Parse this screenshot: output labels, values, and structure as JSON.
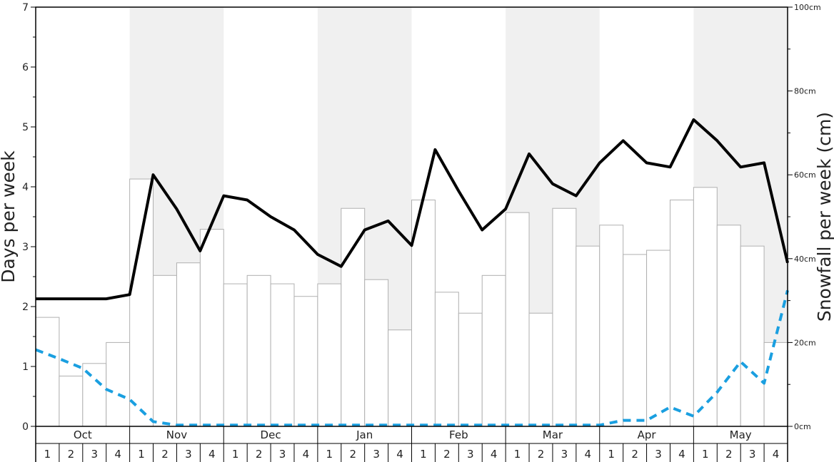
{
  "chart_data": {
    "type": "bar",
    "ylabel": "Days per week",
    "y2label": "Snowfall per week (cm)",
    "ylim": [
      0,
      7
    ],
    "y2lim": [
      0,
      100
    ],
    "y_ticks": [
      "0",
      "1",
      "2",
      "3",
      "4",
      "5",
      "6",
      "7"
    ],
    "y2_ticks": [
      "0cm",
      "20cm",
      "40cm",
      "60cm",
      "80cm",
      "100cm"
    ],
    "months": [
      "Oct",
      "Nov",
      "Dec",
      "Jan",
      "Feb",
      "Mar",
      "Apr",
      "May"
    ],
    "week_labels": [
      "1",
      "2",
      "3",
      "4",
      "1",
      "2",
      "3",
      "4",
      "1",
      "2",
      "3",
      "4",
      "1",
      "2",
      "3",
      "4",
      "1",
      "2",
      "3",
      "4",
      "1",
      "2",
      "3",
      "4",
      "1",
      "2",
      "3",
      "4",
      "1",
      "2",
      "3",
      "4"
    ],
    "series": [
      {
        "axis": "right",
        "kind": "bar",
        "values": [
          26,
          12,
          15,
          20,
          59,
          36,
          39,
          47,
          34,
          36,
          34,
          31,
          34,
          52,
          35,
          23,
          54,
          32,
          27,
          36,
          51,
          27,
          52,
          43,
          48,
          41,
          42,
          54,
          57,
          48,
          43,
          20
        ]
      },
      {
        "axis": "left",
        "kind": "line",
        "style": "solid",
        "color": "#000000",
        "values": [
          2.13,
          2.13,
          2.13,
          2.13,
          2.2,
          4.2,
          3.63,
          2.93,
          3.85,
          3.78,
          3.5,
          3.28,
          2.87,
          2.67,
          3.28,
          3.43,
          3.02,
          4.62,
          3.93,
          3.28,
          3.63,
          4.55,
          4.05,
          3.85,
          4.4,
          4.77,
          4.4,
          4.33,
          5.12,
          4.77,
          4.33,
          4.4,
          2.73
        ]
      },
      {
        "axis": "left",
        "kind": "line",
        "style": "dashed",
        "color": "#1a9fe0",
        "values": [
          1.28,
          1.13,
          0.97,
          0.62,
          0.45,
          0.08,
          0.02,
          0.02,
          0.02,
          0.02,
          0.02,
          0.02,
          0.02,
          0.02,
          0.02,
          0.02,
          0.02,
          0.02,
          0.02,
          0.02,
          0.02,
          0.02,
          0.02,
          0.02,
          0.02,
          0.1,
          0.1,
          0.32,
          0.17,
          0.57,
          1.08,
          0.72,
          2.27
        ]
      }
    ],
    "shading": [
      "white",
      "grey",
      "white",
      "grey",
      "white",
      "grey",
      "white",
      "grey"
    ],
    "colors": {
      "shade": "#f0f0f0",
      "bar_fill": "#ffffff",
      "bar_stroke": "#b0b0b0",
      "axis": "#000000",
      "snow_line": "#000000",
      "rain_line": "#1a9fe0"
    }
  }
}
